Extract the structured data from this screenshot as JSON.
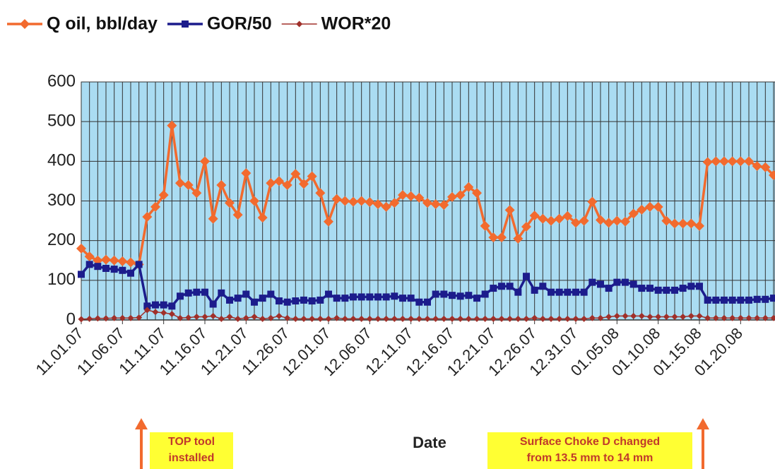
{
  "chart_data": {
    "type": "line",
    "x_label": "Date",
    "categories": [
      "11.01.07",
      null,
      null,
      null,
      null,
      "11.06.07",
      null,
      null,
      null,
      null,
      "11.11.07",
      null,
      null,
      null,
      null,
      "11.16.07",
      null,
      null,
      null,
      null,
      "11.21.07",
      null,
      null,
      null,
      null,
      "11.26.07",
      null,
      null,
      null,
      null,
      "12.01.07",
      null,
      null,
      null,
      null,
      "12.06.07",
      null,
      null,
      null,
      null,
      "12.11.07",
      null,
      null,
      null,
      null,
      "12.16.07",
      null,
      null,
      null,
      null,
      "12.21.07",
      null,
      null,
      null,
      null,
      "12.26.07",
      null,
      null,
      null,
      null,
      "12.31.07",
      null,
      null,
      null,
      null,
      "01.05.08",
      null,
      null,
      null,
      null,
      "01.10.08",
      null,
      null,
      null,
      null,
      "01.15.08",
      null,
      null,
      null,
      null,
      "01.20.08",
      null,
      null,
      null,
      null
    ],
    "series": [
      {
        "name": "Q oil, bbl/day",
        "color": "#f26a2e",
        "marker": "diamond",
        "values": [
          180,
          160,
          150,
          152,
          150,
          148,
          145,
          140,
          260,
          285,
          315,
          490,
          345,
          340,
          320,
          400,
          255,
          340,
          295,
          265,
          370,
          300,
          258,
          345,
          350,
          340,
          368,
          343,
          362,
          320,
          248,
          305,
          300,
          298,
          300,
          297,
          292,
          285,
          295,
          315,
          312,
          308,
          295,
          292,
          290,
          310,
          315,
          335,
          320,
          237,
          208,
          208,
          277,
          205,
          235,
          263,
          255,
          250,
          255,
          262,
          245,
          250,
          298,
          252,
          245,
          250,
          248,
          268,
          278,
          285,
          285,
          250,
          243,
          243,
          243,
          237,
          398,
          400,
          400,
          400,
          400,
          400,
          388,
          385,
          365
        ]
      },
      {
        "name": "GOR/50",
        "color": "#1c1c8c",
        "marker": "square",
        "values": [
          115,
          140,
          135,
          130,
          128,
          125,
          118,
          140,
          35,
          38,
          38,
          35,
          60,
          68,
          70,
          70,
          40,
          68,
          50,
          55,
          65,
          45,
          55,
          65,
          48,
          45,
          48,
          50,
          48,
          50,
          65,
          55,
          55,
          58,
          58,
          58,
          58,
          58,
          60,
          55,
          55,
          45,
          45,
          65,
          65,
          62,
          60,
          62,
          55,
          65,
          80,
          85,
          85,
          70,
          110,
          75,
          85,
          70,
          70,
          70,
          70,
          70,
          95,
          90,
          80,
          95,
          95,
          90,
          80,
          80,
          75,
          75,
          75,
          80,
          85,
          85,
          50,
          50,
          50,
          50,
          50,
          50,
          52,
          52,
          55
        ]
      },
      {
        "name": "WOR*20",
        "color": "#a0302a",
        "marker": "small-diamond",
        "values": [
          2,
          3,
          4,
          4,
          5,
          5,
          5,
          6,
          25,
          20,
          18,
          15,
          5,
          6,
          8,
          8,
          10,
          3,
          8,
          3,
          5,
          8,
          3,
          5,
          10,
          5,
          3,
          3,
          3,
          3,
          3,
          5,
          3,
          3,
          3,
          3,
          3,
          3,
          3,
          3,
          3,
          3,
          3,
          3,
          3,
          3,
          3,
          3,
          3,
          3,
          3,
          3,
          3,
          3,
          3,
          5,
          3,
          3,
          3,
          3,
          3,
          3,
          5,
          5,
          8,
          10,
          10,
          10,
          10,
          8,
          8,
          8,
          8,
          8,
          10,
          10,
          5,
          5,
          5,
          5,
          5,
          5,
          5,
          5,
          5
        ]
      }
    ],
    "ylim": [
      0,
      600
    ],
    "yticks": [
      0,
      100,
      200,
      300,
      400,
      500,
      600
    ],
    "grid": true,
    "legend": "top",
    "annotations": [
      {
        "lines": [
          "TOP tool",
          "installed"
        ]
      },
      {
        "lines": [
          "Surface Choke D changed",
          "from 13.5 mm to 14 mm"
        ]
      }
    ]
  }
}
